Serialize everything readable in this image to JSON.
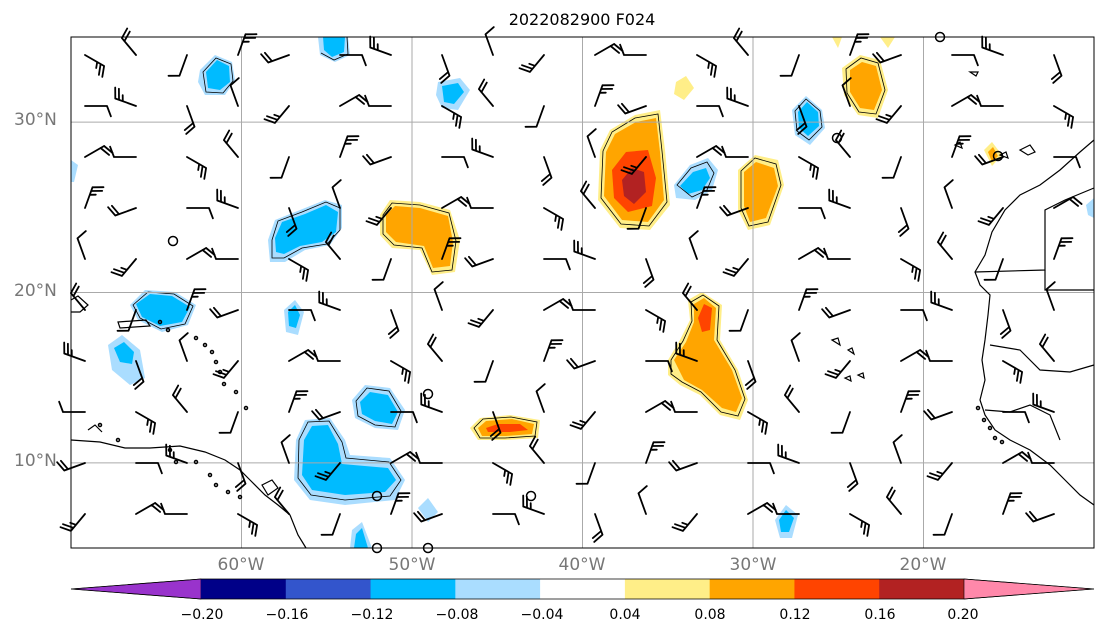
{
  "title": "2022082900 F024",
  "axes": {
    "lat_labels": [
      {
        "text": "30°N",
        "value": 30
      },
      {
        "text": "20°N",
        "value": 20
      },
      {
        "text": "10°N",
        "value": 10
      }
    ],
    "lon_labels": [
      {
        "text": "60°W",
        "value": -60
      },
      {
        "text": "50°W",
        "value": -50
      },
      {
        "text": "40°W",
        "value": -40
      },
      {
        "text": "30°W",
        "value": -30
      },
      {
        "text": "20°W",
        "value": -20
      }
    ],
    "extent": {
      "lon_min": -70,
      "lon_max": -10,
      "lat_min": 5,
      "lat_max": 35
    },
    "grid": true
  },
  "colorbar": {
    "ticks": [
      "−0.20",
      "−0.16",
      "−0.12",
      "−0.08",
      "−0.04",
      "0.04",
      "0.08",
      "0.12",
      "0.16",
      "0.20"
    ],
    "colors": [
      "#9933cc",
      "#000088",
      "#3355cc",
      "#00bbff",
      "#aaddff",
      "#ffffff",
      "#ffee88",
      "#ffa500",
      "#ff4400",
      "#b22222",
      "#ff88aa"
    ]
  },
  "colors": {
    "light_blue": "#aaddff",
    "blue": "#00bbff",
    "yellow": "#ffee88",
    "orange": "#ffa500",
    "red": "#ff4400",
    "dark_red": "#b22222",
    "grid": "#aaaaaa",
    "coast": "#000000"
  }
}
